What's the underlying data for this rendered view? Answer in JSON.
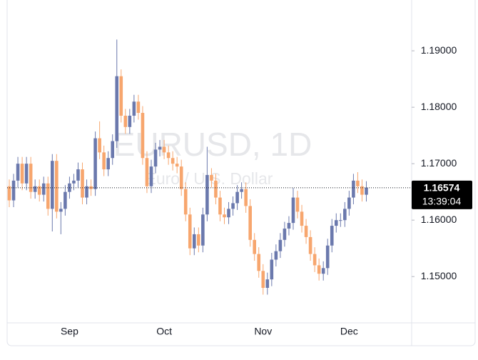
{
  "chart_data": {
    "type": "candlestick",
    "watermark": {
      "title": "EURUSD, 1D",
      "subtitle": "Euro / U.S. Dollar"
    },
    "categories": [
      null,
      null,
      null,
      null,
      null,
      null,
      null,
      null,
      null,
      null,
      null,
      null,
      null,
      null,
      "Sep",
      null,
      null,
      null,
      null,
      null,
      null,
      null,
      null,
      null,
      null,
      null,
      null,
      null,
      null,
      null,
      null,
      null,
      null,
      null,
      null,
      null,
      "Oct",
      null,
      null,
      null,
      null,
      null,
      null,
      null,
      null,
      null,
      null,
      null,
      null,
      null,
      null,
      null,
      null,
      null,
      null,
      null,
      null,
      null,
      null,
      "Nov",
      null,
      null,
      null,
      null,
      null,
      null,
      null,
      null,
      null,
      null,
      null,
      null,
      null,
      null,
      null,
      null,
      null,
      null,
      null,
      "Dec",
      null,
      null,
      null,
      null
    ],
    "open": [
      1.166,
      1.1635,
      1.167,
      1.17,
      1.1665,
      1.17,
      1.165,
      1.166,
      1.1645,
      1.1665,
      1.162,
      1.1705,
      1.1615,
      1.162,
      1.165,
      1.1665,
      1.167,
      1.169,
      1.164,
      1.166,
      1.1655,
      1.1745,
      1.172,
      1.169,
      1.171,
      1.174,
      1.1855,
      1.1785,
      1.1765,
      1.1785,
      1.181,
      1.179,
      1.171,
      1.166,
      1.1695,
      1.1725,
      1.173,
      1.172,
      1.171,
      1.17,
      1.1695,
      1.1655,
      1.161,
      1.155,
      1.1575,
      1.1555,
      1.161,
      1.168,
      1.167,
      1.164,
      1.161,
      1.1605,
      1.162,
      1.163,
      1.165,
      1.1655,
      1.1625,
      1.1565,
      1.154,
      1.151,
      1.148,
      1.1495,
      1.153,
      1.1545,
      1.1565,
      1.1585,
      1.1595,
      1.164,
      1.1615,
      1.159,
      1.157,
      1.154,
      1.152,
      1.1505,
      1.1515,
      1.1555,
      1.159,
      1.16,
      1.16,
      1.162,
      1.164,
      1.167,
      1.166,
      1.1645
    ],
    "high": [
      1.1672,
      1.1682,
      1.1712,
      1.1712,
      1.1712,
      1.1712,
      1.1672,
      1.1672,
      1.1677,
      1.1677,
      1.1717,
      1.1717,
      1.1632,
      1.1662,
      1.1677,
      1.1682,
      1.1702,
      1.1702,
      1.1672,
      1.1672,
      1.1757,
      1.1775,
      1.1732,
      1.1722,
      1.1752,
      1.192,
      1.1867,
      1.1797,
      1.1797,
      1.1822,
      1.1822,
      1.1802,
      1.1722,
      1.1707,
      1.1737,
      1.1742,
      1.1742,
      1.1732,
      1.1722,
      1.1712,
      1.1707,
      1.1667,
      1.1622,
      1.1587,
      1.1587,
      1.1622,
      1.173,
      1.1692,
      1.1682,
      1.1652,
      1.1622,
      1.1632,
      1.1642,
      1.1662,
      1.1667,
      1.1667,
      1.1637,
      1.1577,
      1.1552,
      1.1522,
      1.1507,
      1.1542,
      1.1557,
      1.1577,
      1.1597,
      1.1607,
      1.1657,
      1.1652,
      1.1627,
      1.1602,
      1.1582,
      1.1552,
      1.1532,
      1.1527,
      1.1567,
      1.1602,
      1.1612,
      1.1612,
      1.1632,
      1.1652,
      1.1682,
      1.1685,
      1.1672,
      1.1669
    ],
    "low": [
      1.1623,
      1.1623,
      1.1658,
      1.1653,
      1.1653,
      1.1638,
      1.1638,
      1.1633,
      1.1633,
      1.1608,
      1.158,
      1.1603,
      1.1575,
      1.1608,
      1.1638,
      1.1653,
      1.1658,
      1.1628,
      1.1628,
      1.1643,
      1.1643,
      1.1708,
      1.1678,
      1.1678,
      1.1698,
      1.1728,
      1.1773,
      1.1753,
      1.1753,
      1.1773,
      1.1778,
      1.1698,
      1.1648,
      1.1648,
      1.1683,
      1.1713,
      1.1708,
      1.1698,
      1.1688,
      1.1683,
      1.1643,
      1.1598,
      1.1538,
      1.1538,
      1.1543,
      1.1543,
      1.1598,
      1.1658,
      1.1628,
      1.1598,
      1.1593,
      1.1593,
      1.1608,
      1.1618,
      1.1638,
      1.1613,
      1.1553,
      1.1528,
      1.1498,
      1.1468,
      1.1468,
      1.1483,
      1.1518,
      1.1533,
      1.1553,
      1.1573,
      1.1583,
      1.1603,
      1.1578,
      1.1558,
      1.1528,
      1.1508,
      1.1493,
      1.1493,
      1.1503,
      1.1543,
      1.1578,
      1.1588,
      1.1588,
      1.1608,
      1.1628,
      1.1648,
      1.1633,
      1.1633
    ],
    "close": [
      1.1635,
      1.167,
      1.17,
      1.1665,
      1.17,
      1.165,
      1.166,
      1.1645,
      1.1665,
      1.162,
      1.1705,
      1.1615,
      1.162,
      1.165,
      1.1665,
      1.167,
      1.169,
      1.164,
      1.166,
      1.1655,
      1.1745,
      1.172,
      1.169,
      1.171,
      1.174,
      1.1855,
      1.1785,
      1.1765,
      1.1785,
      1.181,
      1.179,
      1.171,
      1.166,
      1.1695,
      1.1725,
      1.173,
      1.172,
      1.171,
      1.17,
      1.1695,
      1.1655,
      1.161,
      1.155,
      1.1575,
      1.1555,
      1.161,
      1.168,
      1.167,
      1.164,
      1.161,
      1.1605,
      1.162,
      1.163,
      1.165,
      1.1655,
      1.1625,
      1.1565,
      1.154,
      1.151,
      1.148,
      1.1495,
      1.153,
      1.1545,
      1.1565,
      1.1585,
      1.1595,
      1.164,
      1.1615,
      1.159,
      1.157,
      1.154,
      1.152,
      1.1505,
      1.1515,
      1.1555,
      1.159,
      1.16,
      1.16,
      1.162,
      1.164,
      1.167,
      1.166,
      1.1645,
      1.16574
    ],
    "up_color": "#6b79ad",
    "down_color": "#f7a66e",
    "last_price": 1.16574,
    "countdown": "13:39:04",
    "ylim": [
      1.1418,
      1.199
    ],
    "yticks": [
      {
        "value": 1.15,
        "label": "1.15000"
      },
      {
        "value": 1.16,
        "label": "1.16000"
      },
      {
        "value": 1.17,
        "label": "1.17000"
      },
      {
        "value": 1.18,
        "label": "1.18000"
      },
      {
        "value": 1.19,
        "label": "1.19000"
      }
    ]
  }
}
